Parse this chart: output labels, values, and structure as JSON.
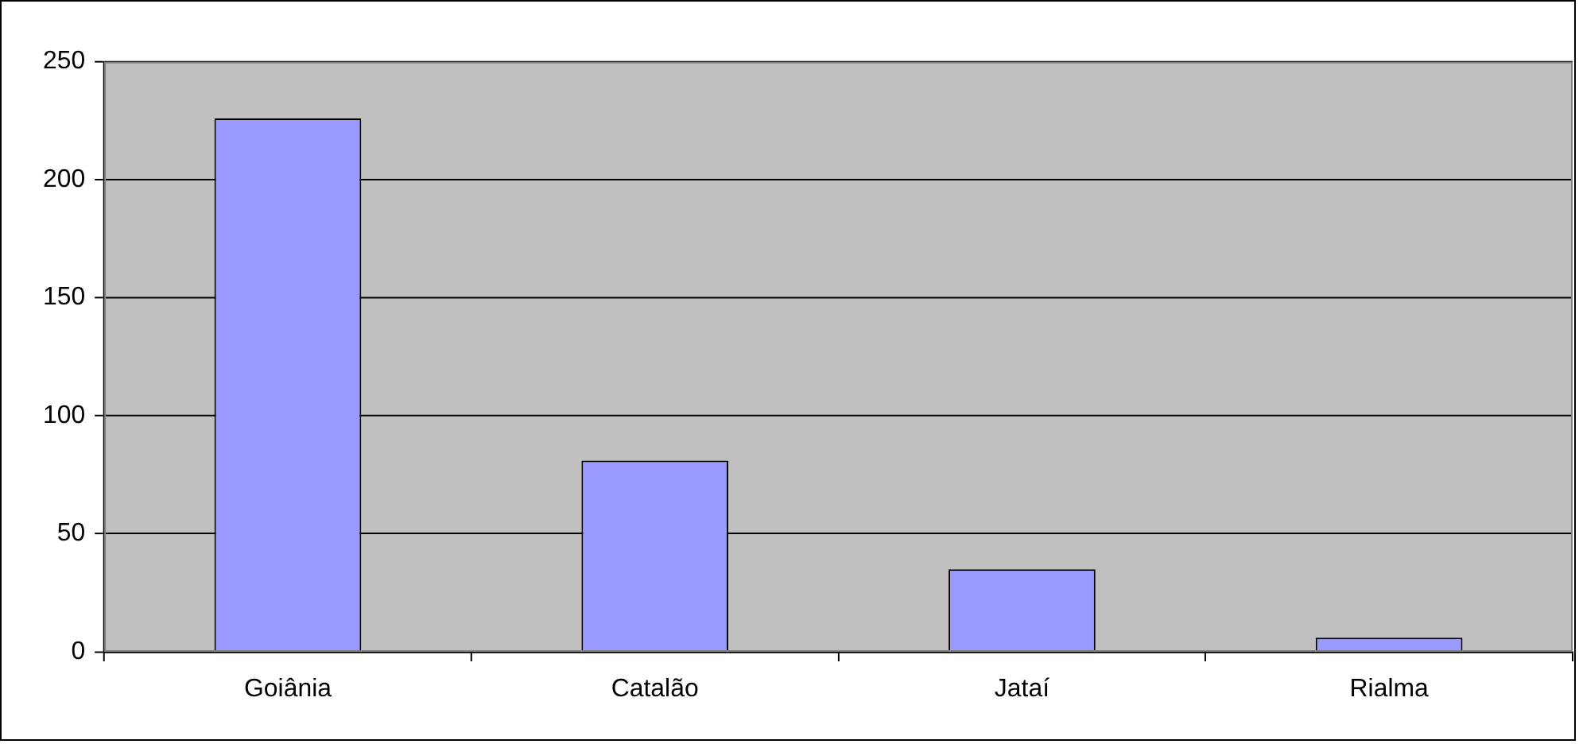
{
  "chart_data": {
    "type": "bar",
    "categories": [
      "Goiânia",
      "Catalão",
      "Jataí",
      "Rialma"
    ],
    "values": [
      226,
      81,
      35,
      6
    ],
    "color": "#9999ff",
    "ylim": [
      0,
      250
    ],
    "yticks": [
      0,
      50,
      100,
      150,
      200,
      250
    ],
    "grid": "y",
    "legend": false
  }
}
